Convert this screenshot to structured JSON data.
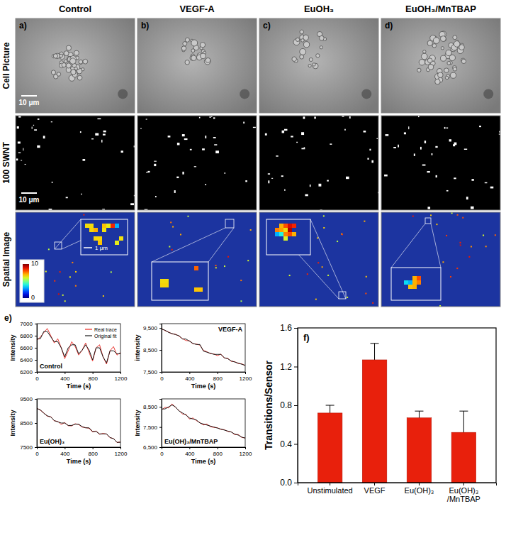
{
  "figure": {
    "columns": [
      "Control",
      "VEGF-A",
      "EuOH₃",
      "EuOH₃/MnTBAP"
    ],
    "rows": [
      "Cell Picture",
      "100 SWNT",
      "Spatial Image"
    ],
    "panel_labels": [
      "a)",
      "b)",
      "c)",
      "d)",
      "e)",
      "f)"
    ],
    "scale_bar": "10 μm",
    "inset_scale_bar": "1 μm",
    "colorbar": {
      "range": [
        0,
        10
      ],
      "ticks": [
        0,
        10
      ]
    }
  },
  "chart_data": [
    {
      "type": "line",
      "annotation": "Control",
      "x_label": "Time (s)",
      "y_label": "Intensity",
      "legend": "upper right",
      "x": [
        0,
        50,
        100,
        150,
        200,
        250,
        300,
        350,
        400,
        450,
        500,
        550,
        600,
        650,
        700,
        750,
        800,
        850,
        900,
        950,
        1000,
        1050,
        1100,
        1150,
        1200
      ],
      "series": [
        {
          "name": "Real trace",
          "color": "#e8251f",
          "values": [
            6720,
            6780,
            6850,
            6920,
            6800,
            6680,
            6750,
            6600,
            6420,
            6550,
            6700,
            6620,
            6480,
            6560,
            6680,
            6520,
            6380,
            6600,
            6650,
            6450,
            6330,
            6550,
            6620,
            6480,
            6520
          ]
        },
        {
          "name": "Original fit",
          "color": "#1a1a1a",
          "values": [
            6750,
            6750,
            6870,
            6870,
            6780,
            6700,
            6700,
            6600,
            6450,
            6600,
            6650,
            6650,
            6500,
            6560,
            6650,
            6560,
            6400,
            6600,
            6600,
            6450,
            6350,
            6550,
            6550,
            6500,
            6500
          ]
        }
      ],
      "xlim": [
        0,
        1200
      ],
      "xticks": [
        0,
        400,
        800,
        1200
      ],
      "ylim": [
        6200,
        7000
      ],
      "yticks": [
        6200,
        6400,
        6600,
        6800,
        7000
      ]
    },
    {
      "type": "line",
      "annotation": "VEGF-A",
      "x_label": "Time (s)",
      "y_label": "intensity",
      "x": [
        0,
        50,
        100,
        150,
        200,
        250,
        300,
        350,
        400,
        450,
        500,
        550,
        600,
        650,
        700,
        750,
        800,
        850,
        900,
        950,
        1000,
        1050,
        1100,
        1150,
        1200
      ],
      "series": [
        {
          "color": "#e8251f",
          "values": [
            9480,
            9380,
            9320,
            9230,
            9220,
            9130,
            9020,
            8930,
            8920,
            8780,
            8770,
            8720,
            8480,
            8420,
            8330,
            8320,
            8240,
            8310,
            8130,
            8120,
            7980,
            7970,
            7880,
            7870,
            7790
          ]
        },
        {
          "color": "#1a1a1a",
          "values": [
            9450,
            9400,
            9300,
            9250,
            9200,
            9150,
            9000,
            9000,
            8900,
            8800,
            8750,
            8750,
            8450,
            8400,
            8350,
            8300,
            8300,
            8300,
            8150,
            8100,
            8000,
            7950,
            7900,
            7850,
            7800
          ]
        }
      ],
      "xlim": [
        0,
        1200
      ],
      "xticks": [
        0,
        400,
        800,
        1200
      ],
      "ylim": [
        7500,
        9700
      ],
      "yticks": [
        {
          "value": 7500,
          "label": "7,500"
        },
        {
          "value": 8500,
          "label": "8,500"
        },
        {
          "value": 9500,
          "label": "9,500"
        }
      ]
    },
    {
      "type": "line",
      "annotation": "Eu(OH)₃",
      "x_label": "Time (s)",
      "y_label": "Intensity",
      "x": [
        0,
        50,
        100,
        150,
        200,
        250,
        300,
        350,
        400,
        450,
        500,
        550,
        600,
        650,
        700,
        750,
        800,
        850,
        900,
        950,
        1000,
        1050,
        1100,
        1150,
        1200
      ],
      "series": [
        {
          "color": "#e8251f",
          "values": [
            9120,
            9030,
            8920,
            8780,
            8760,
            8590,
            8570,
            8440,
            8520,
            8390,
            8380,
            8470,
            8440,
            8330,
            8310,
            8280,
            8130,
            8170,
            8030,
            8070,
            8040,
            7890,
            7860,
            7690,
            7720
          ]
        },
        {
          "color": "#1a1a1a",
          "values": [
            9100,
            9050,
            8900,
            8800,
            8750,
            8600,
            8550,
            8500,
            8500,
            8400,
            8400,
            8450,
            8450,
            8350,
            8300,
            8300,
            8150,
            8150,
            8050,
            8050,
            8050,
            7900,
            7850,
            7700,
            7700
          ]
        }
      ],
      "xlim": [
        0,
        1200
      ],
      "xticks": [
        0,
        400,
        800,
        1200
      ],
      "ylim": [
        7500,
        9500
      ],
      "yticks": [
        7500,
        8500,
        9500
      ]
    },
    {
      "type": "line",
      "annotation": "Eu(OH)₃/MnTBAP",
      "x_label": "Time (s)",
      "y_label": "Intensity",
      "x": [
        0,
        50,
        100,
        150,
        200,
        250,
        300,
        350,
        400,
        450,
        500,
        550,
        600,
        650,
        700,
        750,
        800,
        850,
        900,
        950,
        1000,
        1050,
        1100,
        1150,
        1200
      ],
      "series": [
        {
          "color": "#e8251f",
          "values": [
            8350,
            8480,
            8450,
            8650,
            8480,
            8320,
            8150,
            8130,
            7900,
            7950,
            7820,
            7720,
            7600,
            7650,
            7520,
            7480,
            7470,
            7380,
            7370,
            7280,
            7260,
            7120,
            7130,
            6980,
            6960
          ]
        },
        {
          "color": "#1a1a1a",
          "values": [
            8400,
            8400,
            8500,
            8600,
            8500,
            8300,
            8200,
            8100,
            7950,
            7900,
            7850,
            7700,
            7650,
            7600,
            7550,
            7500,
            7450,
            7400,
            7350,
            7300,
            7250,
            7150,
            7100,
            7000,
            6950
          ]
        }
      ],
      "xlim": [
        0,
        1200
      ],
      "xticks": [
        0,
        400,
        800,
        1200
      ],
      "ylim": [
        6500,
        8900
      ],
      "yticks": [
        {
          "value": 6500,
          "label": "6,500"
        },
        {
          "value": 7500,
          "label": "7,500"
        },
        {
          "value": 8500,
          "label": "8,500"
        }
      ]
    },
    {
      "type": "bar",
      "y_label": "Transitions/Sensor",
      "categories": [
        "Unstimulated",
        "VEGF",
        "Eu(OH)₃",
        "Eu(OH)₃/MnTBAP"
      ],
      "values": [
        0.72,
        1.27,
        0.67,
        0.52
      ],
      "errors": [
        0.08,
        0.17,
        0.07,
        0.22
      ],
      "color": "#e8200c",
      "ylim": [
        0,
        1.6
      ],
      "yticks": [
        {
          "value": 0,
          "label": "0.0"
        },
        {
          "value": 0.4,
          "label": "0.4"
        },
        {
          "value": 0.8,
          "label": "0.8"
        },
        {
          "value": 1.2,
          "label": "1.2"
        },
        {
          "value": 1.6,
          "label": "1.6"
        }
      ]
    }
  ]
}
